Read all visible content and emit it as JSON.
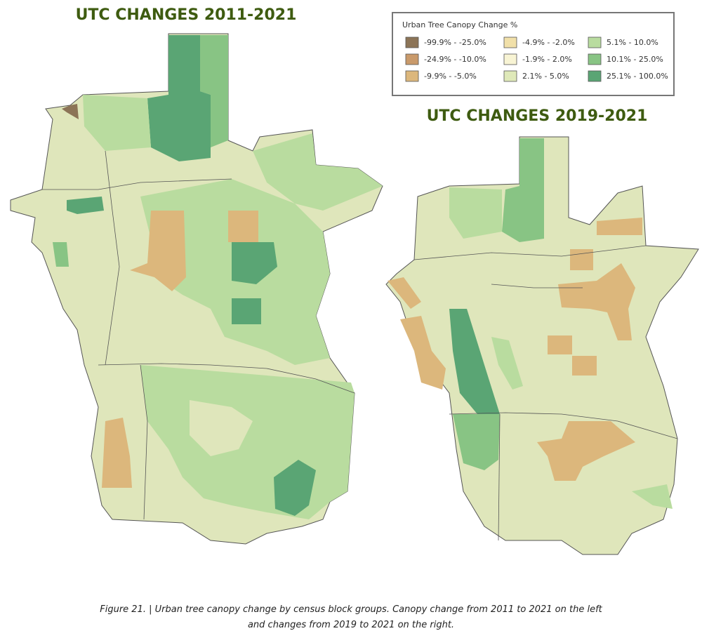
{
  "left_title": "UTC CHANGES 2011-2021",
  "right_title": "UTC CHANGES 2019-2021",
  "legend": {
    "title": "Urban Tree Canopy Change %",
    "items": [
      {
        "label": "-99.9% - -25.0%",
        "color": "#8c7457"
      },
      {
        "label": "-24.9% - -10.0%",
        "color": "#c99a6b"
      },
      {
        "label": "-9.9% - -5.0%",
        "color": "#dcb77c"
      },
      {
        "label": "-4.9% - -2.0%",
        "color": "#f1e0a9"
      },
      {
        "label": "-1.9% - 2.0%",
        "color": "#f8f4d4"
      },
      {
        "label": "2.1% - 5.0%",
        "color": "#dfe9b9"
      },
      {
        "label": "5.1% - 10.0%",
        "color": "#b9dc9f"
      },
      {
        "label": "10.1% - 25.0%",
        "color": "#88c484"
      },
      {
        "label": "25.1% - 100.0%",
        "color": "#5aa574"
      }
    ]
  },
  "caption": [
    "Figure 21. | Urban tree canopy change by census block groups. Canopy change from 2011 to 2021 on the left",
    "and changes from 2019 to 2021 on the right."
  ]
}
